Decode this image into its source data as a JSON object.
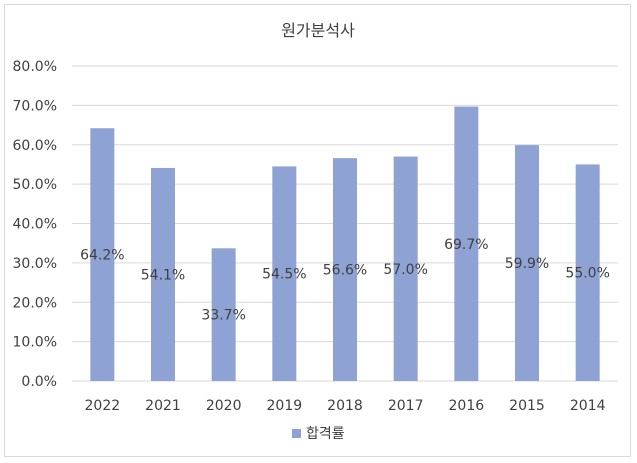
{
  "chart_data": {
    "type": "bar",
    "title": "원가분석사",
    "categories": [
      "2022",
      "2021",
      "2020",
      "2019",
      "2018",
      "2017",
      "2016",
      "2015",
      "2014"
    ],
    "series": [
      {
        "name": "합격률",
        "values": [
          64.2,
          54.1,
          33.7,
          54.5,
          56.6,
          57.0,
          69.7,
          59.9,
          55.0
        ],
        "labels": [
          "64.2%",
          "54.1%",
          "33.7%",
          "54.5%",
          "56.6%",
          "57.0%",
          "69.7%",
          "59.9%",
          "55.0%"
        ],
        "color": "#8ea2d4"
      }
    ],
    "ylim": [
      0,
      80
    ],
    "yticks": [
      "0.0%",
      "10.0%",
      "20.0%",
      "30.0%",
      "40.0%",
      "50.0%",
      "60.0%",
      "70.0%",
      "80.0%"
    ],
    "grid": true,
    "legend": "bottom",
    "xlabel": "",
    "ylabel": ""
  }
}
